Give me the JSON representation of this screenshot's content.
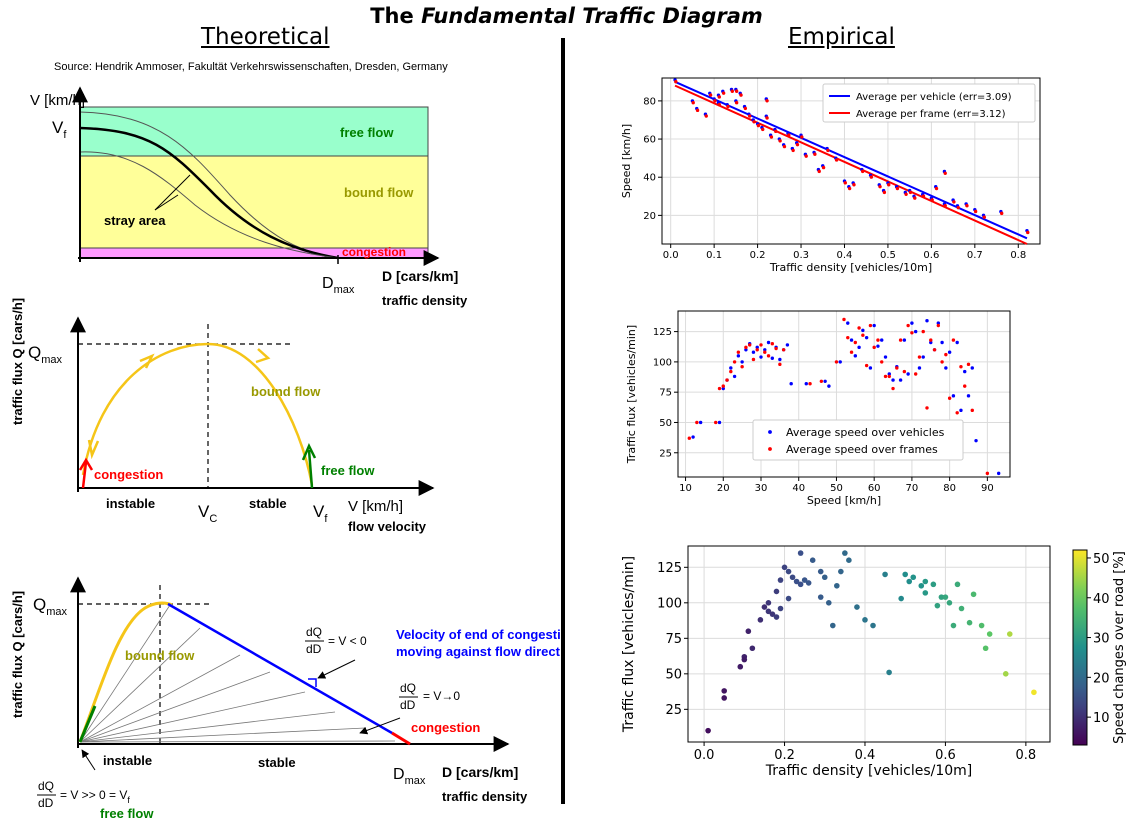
{
  "title_prefix": "The ",
  "title_italic": "Fundamental Traffic Diagram",
  "left_heading": "Theoretical",
  "right_heading": "Empirical",
  "source": "Source: Hendrik Ammoser, Fakultät Verkehrswissenschaften, Dresden, Germany",
  "theory1": {
    "ylabel": "V [km/h]",
    "vf": "V",
    "vf_sub": "f",
    "free_flow": "free flow",
    "bound_flow": "bound flow",
    "congestion": "congestion",
    "stray": "stray area",
    "dmax": "D",
    "dmax_sub": "max",
    "xunit": "D  [cars/km]",
    "xlabel": "traffic density"
  },
  "theory2": {
    "ylabel": "traffic flux Q [cars/h]",
    "qmax": "Q",
    "qmax_sub": "max",
    "bound_flow": "bound flow",
    "congestion": "congestion",
    "free_flow": "free flow",
    "instable": "instable",
    "stable": "stable",
    "vc": "V",
    "vc_sub": "C",
    "vf": "V",
    "vf_sub": "f",
    "xunit": "V [km/h]",
    "xlabel": "flow velocity"
  },
  "theory3": {
    "ylabel": "traffic flux Q [cars/h]",
    "qmax": "Q",
    "qmax_sub": "max",
    "bound_flow": "bound flow",
    "frac_num": "dQ",
    "frac_den": "dD",
    "eq1": "= V < 0",
    "eq2": "= V→0",
    "eq3": "= V >> 0 = V",
    "eq3_sub": "f",
    "velocity_line1": "Velocity of end of congestion",
    "velocity_line2": "moving against flow direction",
    "congestion": "congestion",
    "instable": "instable",
    "stable": "stable",
    "dmax": "D",
    "dmax_sub": "max",
    "xunit": "D  [cars/km]",
    "xlabel": "traffic density",
    "free_flow": "free flow"
  },
  "colors": {
    "free_zone": "#99ffcc",
    "bound_zone": "#ffff99",
    "cong_zone": "#ff99ff",
    "free_text": "#008000",
    "bound_text": "#999900",
    "cong_text": "#ff0000",
    "velocity_text": "#0000ff",
    "curve_yellow": "#f5c518",
    "series_blue": "#0000ff",
    "series_red": "#ff0000"
  },
  "chart_data": [
    {
      "type": "scatter",
      "xlabel": "Traffic density [vehicles/10m]",
      "ylabel": "Speed [km/h]",
      "xlim": [
        -0.02,
        0.85
      ],
      "ylim": [
        5,
        92
      ],
      "xticks": [
        0.0,
        0.1,
        0.2,
        0.3,
        0.4,
        0.5,
        0.6,
        0.7,
        0.8
      ],
      "yticks": [
        20,
        40,
        60,
        80
      ],
      "grid": true,
      "legend": "top-right",
      "lines": [
        {
          "name": "Average per vehicle (err=3.09)",
          "color": "#0000ff",
          "x": [
            0.01,
            0.82
          ],
          "y": [
            90,
            8
          ]
        },
        {
          "name": "Average per frame (err=3.12)",
          "color": "#ff0000",
          "x": [
            0.01,
            0.82
          ],
          "y": [
            88,
            5
          ]
        }
      ],
      "points": [
        [
          0.01,
          91
        ],
        [
          0.05,
          80
        ],
        [
          0.06,
          76
        ],
        [
          0.08,
          73
        ],
        [
          0.09,
          84
        ],
        [
          0.1,
          81
        ],
        [
          0.11,
          79
        ],
        [
          0.11,
          83
        ],
        [
          0.12,
          85
        ],
        [
          0.13,
          78
        ],
        [
          0.14,
          86
        ],
        [
          0.15,
          86
        ],
        [
          0.15,
          80
        ],
        [
          0.16,
          84
        ],
        [
          0.17,
          77
        ],
        [
          0.18,
          73
        ],
        [
          0.19,
          70
        ],
        [
          0.2,
          68
        ],
        [
          0.21,
          66
        ],
        [
          0.22,
          81
        ],
        [
          0.22,
          72
        ],
        [
          0.23,
          62
        ],
        [
          0.24,
          65
        ],
        [
          0.25,
          60
        ],
        [
          0.26,
          57
        ],
        [
          0.27,
          63
        ],
        [
          0.28,
          55
        ],
        [
          0.29,
          58
        ],
        [
          0.3,
          62
        ],
        [
          0.31,
          52
        ],
        [
          0.33,
          53
        ],
        [
          0.34,
          44
        ],
        [
          0.35,
          46
        ],
        [
          0.36,
          55
        ],
        [
          0.38,
          50
        ],
        [
          0.4,
          38
        ],
        [
          0.41,
          35
        ],
        [
          0.42,
          37
        ],
        [
          0.44,
          44
        ],
        [
          0.46,
          41
        ],
        [
          0.48,
          36
        ],
        [
          0.49,
          33
        ],
        [
          0.5,
          37
        ],
        [
          0.52,
          35
        ],
        [
          0.54,
          32
        ],
        [
          0.55,
          33
        ],
        [
          0.56,
          30
        ],
        [
          0.58,
          31
        ],
        [
          0.6,
          29
        ],
        [
          0.61,
          35
        ],
        [
          0.63,
          43
        ],
        [
          0.63,
          26
        ],
        [
          0.65,
          28
        ],
        [
          0.66,
          25
        ],
        [
          0.68,
          26
        ],
        [
          0.7,
          23
        ],
        [
          0.72,
          20
        ],
        [
          0.76,
          22
        ],
        [
          0.82,
          12
        ]
      ]
    },
    {
      "type": "scatter",
      "xlabel": "Speed [km/h]",
      "ylabel": "Traffic flux [vehicles/min]",
      "xlim": [
        8,
        96
      ],
      "ylim": [
        5,
        142
      ],
      "xticks": [
        10,
        20,
        30,
        40,
        50,
        60,
        70,
        80,
        90
      ],
      "yticks": [
        25,
        50,
        75,
        100,
        125
      ],
      "grid": true,
      "legend": "bottom-center",
      "series": [
        {
          "name": "Average speed over vehicles",
          "color": "#0000ff",
          "points": [
            [
              12,
              38
            ],
            [
              14,
              50
            ],
            [
              19,
              50
            ],
            [
              20,
              78
            ],
            [
              21,
              85
            ],
            [
              22,
              95
            ],
            [
              23,
              88
            ],
            [
              24,
              105
            ],
            [
              25,
              100
            ],
            [
              26,
              110
            ],
            [
              27,
              115
            ],
            [
              28,
              108
            ],
            [
              29,
              112
            ],
            [
              30,
              104
            ],
            [
              31,
              110
            ],
            [
              32,
              116
            ],
            [
              33,
              103
            ],
            [
              34,
              112
            ],
            [
              35,
              102
            ],
            [
              36,
              110
            ],
            [
              37,
              114
            ],
            [
              38,
              82
            ],
            [
              42,
              82
            ],
            [
              47,
              84
            ],
            [
              48,
              80
            ],
            [
              51,
              100
            ],
            [
              53,
              132
            ],
            [
              54,
              118
            ],
            [
              55,
              105
            ],
            [
              56,
              112
            ],
            [
              57,
              126
            ],
            [
              58,
              120
            ],
            [
              59,
              95
            ],
            [
              60,
              130
            ],
            [
              61,
              113
            ],
            [
              62,
              118
            ],
            [
              63,
              104
            ],
            [
              64,
              90
            ],
            [
              65,
              85
            ],
            [
              66,
              96
            ],
            [
              67,
              85
            ],
            [
              68,
              118
            ],
            [
              69,
              90
            ],
            [
              70,
              132
            ],
            [
              71,
              125
            ],
            [
              72,
              95
            ],
            [
              73,
              104
            ],
            [
              74,
              134
            ],
            [
              75,
              116
            ],
            [
              76,
              110
            ],
            [
              77,
              132
            ],
            [
              78,
              116
            ],
            [
              79,
              95
            ],
            [
              80,
              108
            ],
            [
              81,
              72
            ],
            [
              82,
              116
            ],
            [
              83,
              60
            ],
            [
              84,
              92
            ],
            [
              85,
              72
            ],
            [
              86,
              95
            ],
            [
              87,
              35
            ],
            [
              93,
              8
            ]
          ]
        },
        {
          "name": "Average speed over frames",
          "color": "#ff0000",
          "points": [
            [
              11,
              37
            ],
            [
              13,
              50
            ],
            [
              18,
              50
            ],
            [
              19,
              78
            ],
            [
              20,
              80
            ],
            [
              21,
              85
            ],
            [
              22,
              92
            ],
            [
              23,
              100
            ],
            [
              24,
              108
            ],
            [
              25,
              96
            ],
            [
              26,
              112
            ],
            [
              27,
              114
            ],
            [
              28,
              102
            ],
            [
              29,
              110
            ],
            [
              30,
              114
            ],
            [
              31,
              108
            ],
            [
              32,
              105
            ],
            [
              33,
              115
            ],
            [
              34,
              111
            ],
            [
              35,
              98
            ],
            [
              36,
              110
            ],
            [
              37,
              50
            ],
            [
              39,
              50
            ],
            [
              43,
              82
            ],
            [
              46,
              84
            ],
            [
              50,
              100
            ],
            [
              52,
              135
            ],
            [
              53,
              120
            ],
            [
              54,
              108
            ],
            [
              55,
              116
            ],
            [
              56,
              128
            ],
            [
              57,
              122
            ],
            [
              58,
              97
            ],
            [
              59,
              130
            ],
            [
              60,
              112
            ],
            [
              61,
              118
            ],
            [
              62,
              100
            ],
            [
              63,
              88
            ],
            [
              64,
              88
            ],
            [
              65,
              78
            ],
            [
              66,
              95
            ],
            [
              67,
              118
            ],
            [
              68,
              92
            ],
            [
              69,
              130
            ],
            [
              70,
              124
            ],
            [
              71,
              90
            ],
            [
              72,
              104
            ],
            [
              73,
              125
            ],
            [
              74,
              62
            ],
            [
              75,
              118
            ],
            [
              76,
              110
            ],
            [
              77,
              130
            ],
            [
              78,
              100
            ],
            [
              79,
              106
            ],
            [
              80,
              70
            ],
            [
              81,
              118
            ],
            [
              82,
              58
            ],
            [
              83,
              96
            ],
            [
              84,
              80
            ],
            [
              85,
              98
            ],
            [
              86,
              60
            ],
            [
              90,
              8
            ]
          ]
        }
      ]
    },
    {
      "type": "scatter",
      "xlabel": "Traffic density [vehicles/10m]",
      "ylabel": "Traffic flux [vehicles/min]",
      "colorbar_label": "Speed changes over road [%]",
      "xlim": [
        -0.04,
        0.86
      ],
      "ylim": [
        2,
        140
      ],
      "xticks": [
        0.0,
        0.2,
        0.4,
        0.6,
        0.8
      ],
      "yticks": [
        25,
        50,
        75,
        100,
        125
      ],
      "colorbar_ticks": [
        10,
        20,
        30,
        40,
        50
      ],
      "clim": [
        3,
        52
      ],
      "grid": true,
      "points": [
        [
          0.01,
          10,
          5
        ],
        [
          0.05,
          33,
          6
        ],
        [
          0.05,
          38,
          6
        ],
        [
          0.09,
          55,
          7
        ],
        [
          0.1,
          62,
          8
        ],
        [
          0.1,
          60,
          7
        ],
        [
          0.11,
          80,
          8
        ],
        [
          0.12,
          68,
          9
        ],
        [
          0.14,
          88,
          10
        ],
        [
          0.15,
          97,
          10
        ],
        [
          0.16,
          94,
          11
        ],
        [
          0.16,
          100,
          11
        ],
        [
          0.17,
          92,
          11
        ],
        [
          0.18,
          90,
          12
        ],
        [
          0.18,
          108,
          12
        ],
        [
          0.19,
          96,
          13
        ],
        [
          0.19,
          116,
          13
        ],
        [
          0.2,
          125,
          13
        ],
        [
          0.21,
          122,
          14
        ],
        [
          0.21,
          103,
          14
        ],
        [
          0.22,
          118,
          14
        ],
        [
          0.23,
          115,
          15
        ],
        [
          0.24,
          135,
          15
        ],
        [
          0.24,
          113,
          15
        ],
        [
          0.25,
          116,
          16
        ],
        [
          0.26,
          114,
          16
        ],
        [
          0.27,
          130,
          17
        ],
        [
          0.29,
          122,
          17
        ],
        [
          0.29,
          104,
          17
        ],
        [
          0.3,
          118,
          18
        ],
        [
          0.31,
          100,
          18
        ],
        [
          0.32,
          84,
          19
        ],
        [
          0.33,
          112,
          19
        ],
        [
          0.34,
          122,
          19
        ],
        [
          0.35,
          135,
          20
        ],
        [
          0.36,
          130,
          20
        ],
        [
          0.38,
          97,
          21
        ],
        [
          0.4,
          88,
          22
        ],
        [
          0.42,
          84,
          22
        ],
        [
          0.45,
          120,
          24
        ],
        [
          0.46,
          51,
          24
        ],
        [
          0.49,
          103,
          26
        ],
        [
          0.5,
          120,
          27
        ],
        [
          0.51,
          115,
          27
        ],
        [
          0.52,
          118,
          28
        ],
        [
          0.54,
          112,
          28
        ],
        [
          0.55,
          107,
          29
        ],
        [
          0.55,
          115,
          29
        ],
        [
          0.57,
          113,
          30
        ],
        [
          0.58,
          98,
          31
        ],
        [
          0.59,
          104,
          31
        ],
        [
          0.6,
          104,
          32
        ],
        [
          0.61,
          100,
          32
        ],
        [
          0.62,
          84,
          33
        ],
        [
          0.63,
          113,
          33
        ],
        [
          0.64,
          96,
          34
        ],
        [
          0.66,
          86,
          35
        ],
        [
          0.67,
          106,
          36
        ],
        [
          0.69,
          84,
          37
        ],
        [
          0.7,
          68,
          38
        ],
        [
          0.71,
          78,
          39
        ],
        [
          0.75,
          50,
          45
        ],
        [
          0.76,
          78,
          46
        ],
        [
          0.82,
          37,
          51
        ]
      ]
    }
  ]
}
